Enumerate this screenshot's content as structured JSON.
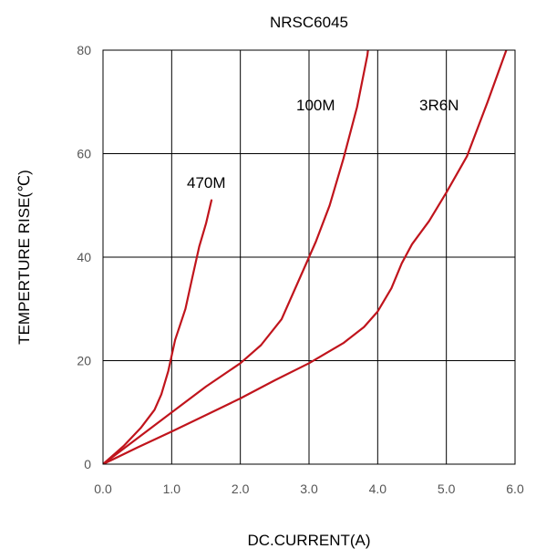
{
  "chart_data": {
    "type": "line",
    "title": "NRSC6045",
    "xlabel": "DC.CURRENT(A)",
    "ylabel": "TEMPERTURE RISE(℃)",
    "xlim": [
      0,
      6
    ],
    "ylim": [
      0,
      80
    ],
    "x_ticks": [
      "0.0",
      "1.0",
      "2.0",
      "3.0",
      "4.0",
      "5.0",
      "6.0"
    ],
    "x_tick_values": [
      0,
      1,
      2,
      3,
      4,
      5,
      6
    ],
    "y_ticks": [
      "0",
      "20",
      "40",
      "60",
      "80"
    ],
    "y_tick_values": [
      0,
      20,
      40,
      60,
      80
    ],
    "grid": true,
    "line_color": "#c0141c",
    "series": [
      {
        "name": "470M",
        "points": [
          [
            0,
            0
          ],
          [
            0.3,
            3.5
          ],
          [
            0.55,
            7
          ],
          [
            0.75,
            10.5
          ],
          [
            0.85,
            13.5
          ],
          [
            0.95,
            18
          ],
          [
            1.05,
            24
          ],
          [
            1.2,
            30
          ],
          [
            1.3,
            36
          ],
          [
            1.4,
            42
          ],
          [
            1.5,
            46.5
          ],
          [
            1.58,
            51
          ]
        ]
      },
      {
        "name": "100M",
        "points": [
          [
            0,
            0
          ],
          [
            0.5,
            5
          ],
          [
            1.0,
            10
          ],
          [
            1.5,
            15
          ],
          [
            2.0,
            19.5
          ],
          [
            2.3,
            23
          ],
          [
            2.6,
            28
          ],
          [
            2.9,
            37
          ],
          [
            3.1,
            43
          ],
          [
            3.3,
            50
          ],
          [
            3.5,
            59
          ],
          [
            3.7,
            69
          ],
          [
            3.85,
            79
          ],
          [
            3.93,
            88
          ]
        ]
      },
      {
        "name": "3R6N",
        "points": [
          [
            0,
            0
          ],
          [
            0.5,
            3.2
          ],
          [
            1.0,
            6.3
          ],
          [
            1.5,
            9.5
          ],
          [
            2.0,
            12.7
          ],
          [
            2.5,
            16.2
          ],
          [
            3.0,
            19.5
          ],
          [
            3.5,
            23.4
          ],
          [
            3.8,
            26.5
          ],
          [
            4.0,
            29.5
          ],
          [
            4.2,
            34
          ],
          [
            4.35,
            38.8
          ],
          [
            4.5,
            42.5
          ],
          [
            4.75,
            47
          ],
          [
            5.0,
            52.5
          ],
          [
            5.3,
            59.5
          ],
          [
            5.6,
            70
          ],
          [
            5.9,
            81
          ],
          [
            6.0,
            84
          ]
        ]
      }
    ],
    "series_labels": [
      {
        "series": "470M",
        "text": "470M"
      },
      {
        "series": "100M",
        "text": "100M"
      },
      {
        "series": "3R6N",
        "text": "3R6N"
      }
    ]
  }
}
